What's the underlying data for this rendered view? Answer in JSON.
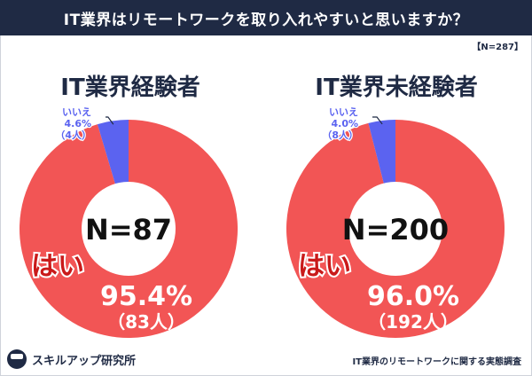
{
  "header": {
    "title": "IT業界はリモートワークを取り入れやすいと思いますか？",
    "sample": "【N=287】"
  },
  "footer": {
    "brand": "スキルアップ研究所",
    "note": "IT業界のリモートワークに関する実態調査"
  },
  "colors": {
    "header_bg": "#1f2a44",
    "yes": "#f25555",
    "no": "#5b63f0",
    "yes_text": "#c91a1a",
    "center": "#ffffff"
  },
  "chart_data": [
    {
      "type": "pie",
      "title": "IT業界経験者",
      "center_label": "N=87",
      "slices": [
        {
          "label": "はい",
          "percent_label": "95.4%",
          "count_label": "（83人）",
          "value": 95.4
        },
        {
          "label": "いいえ",
          "percent_label": "4.6%",
          "count_label": "（4人）",
          "value": 4.6
        }
      ]
    },
    {
      "type": "pie",
      "title": "IT業界未経験者",
      "center_label": "N=200",
      "slices": [
        {
          "label": "はい",
          "percent_label": "96.0%",
          "count_label": "（192人）",
          "value": 96.0
        },
        {
          "label": "いいえ",
          "percent_label": "4.0%",
          "count_label": "（8人）",
          "value": 4.0
        }
      ]
    }
  ]
}
